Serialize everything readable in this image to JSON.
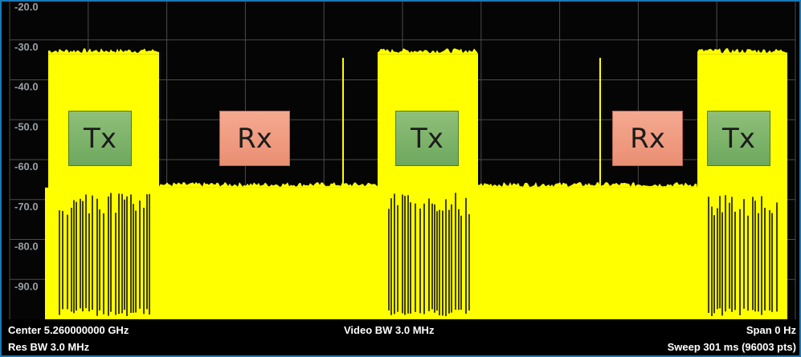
{
  "chart_data": {
    "type": "area",
    "ylim": [
      -100,
      -20
    ],
    "y_ticks": [
      "-20.0",
      "-30.0",
      "-40.0",
      "-50.0",
      "-60.0",
      "-70.0",
      "-80.0",
      "-90.0"
    ],
    "grid": true,
    "trace_color": "#ffff00",
    "segments": [
      {
        "label": "Tx",
        "level_top": -33.5,
        "floor": -100
      },
      {
        "label": "Rx",
        "level_top": -67,
        "floor": -100,
        "spike": -34.5
      },
      {
        "label": "Tx",
        "level_top": -33.5,
        "floor": -100
      },
      {
        "label": "Rx",
        "level_top": -67,
        "floor": -100,
        "spike": -34.5
      },
      {
        "label": "Tx",
        "level_top": -33.5,
        "floor": -100
      }
    ]
  },
  "annotations": {
    "tx_color": "#7fb46c",
    "rx_color": "#f09a80",
    "labels": [
      "Tx",
      "Rx",
      "Tx",
      "Rx",
      "Tx"
    ]
  },
  "footer": {
    "center": "Center 5.260000000 GHz",
    "video_bw": "Video BW 3.0 MHz",
    "span": "Span 0 Hz",
    "res_bw": "Res BW 3.0 MHz",
    "sweep": "Sweep 301 ms (96003 pts)"
  }
}
